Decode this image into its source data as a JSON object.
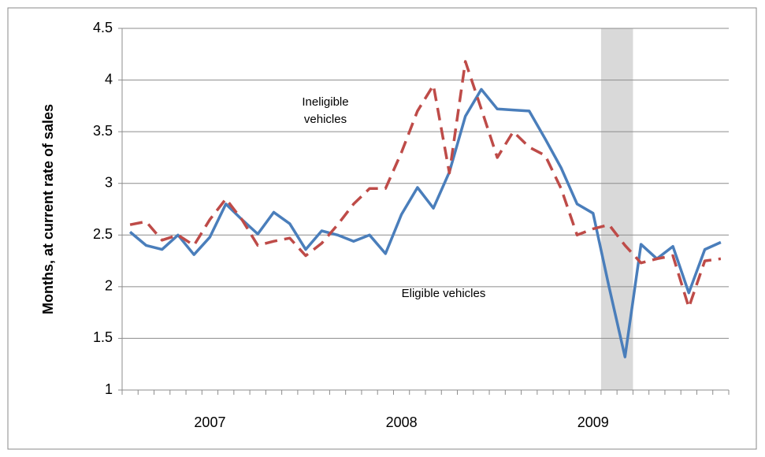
{
  "chart_data": {
    "type": "line",
    "y_label": "Months, at current rate of sales",
    "categories": [
      null,
      null,
      null,
      null,
      null,
      "2007",
      null,
      null,
      null,
      null,
      null,
      null,
      null,
      null,
      null,
      null,
      null,
      "2008",
      null,
      null,
      null,
      null,
      null,
      null,
      null,
      null,
      null,
      null,
      null,
      "2009",
      null,
      null,
      null,
      null,
      null,
      null,
      null,
      null
    ],
    "series": [
      {
        "name": "Eligible vehicles",
        "color": "#4a7ebb",
        "dash": false,
        "values": [
          2.53,
          2.4,
          2.36,
          2.5,
          2.31,
          2.48,
          2.8,
          2.65,
          2.51,
          2.72,
          2.61,
          2.36,
          2.54,
          2.5,
          2.44,
          2.5,
          2.32,
          2.7,
          2.96,
          2.76,
          3.11,
          3.65,
          3.91,
          3.72,
          3.71,
          3.7,
          3.43,
          3.15,
          2.8,
          2.71,
          2.0,
          1.32,
          2.41,
          2.27,
          2.39,
          1.94,
          2.36,
          2.43
        ]
      },
      {
        "name": "Ineligible vehicles",
        "color": "#be4b48",
        "dash": true,
        "values": [
          2.6,
          2.63,
          2.45,
          2.5,
          2.4,
          2.65,
          2.85,
          2.65,
          2.4,
          2.44,
          2.47,
          2.3,
          2.42,
          2.6,
          2.8,
          2.95,
          2.95,
          3.3,
          3.7,
          3.95,
          3.1,
          4.18,
          3.72,
          3.25,
          3.5,
          3.35,
          3.27,
          2.95,
          2.5,
          2.56,
          2.6,
          2.4,
          2.23,
          2.27,
          2.3,
          1.8,
          2.25,
          2.27
        ]
      }
    ],
    "highlight": {
      "from": 30,
      "to": 31,
      "color": "#d9d9d9"
    },
    "ylim": [
      1,
      4.5
    ],
    "yticks": [
      1,
      1.5,
      2,
      2.5,
      3,
      3.5,
      4,
      4.5
    ],
    "grid": true
  }
}
